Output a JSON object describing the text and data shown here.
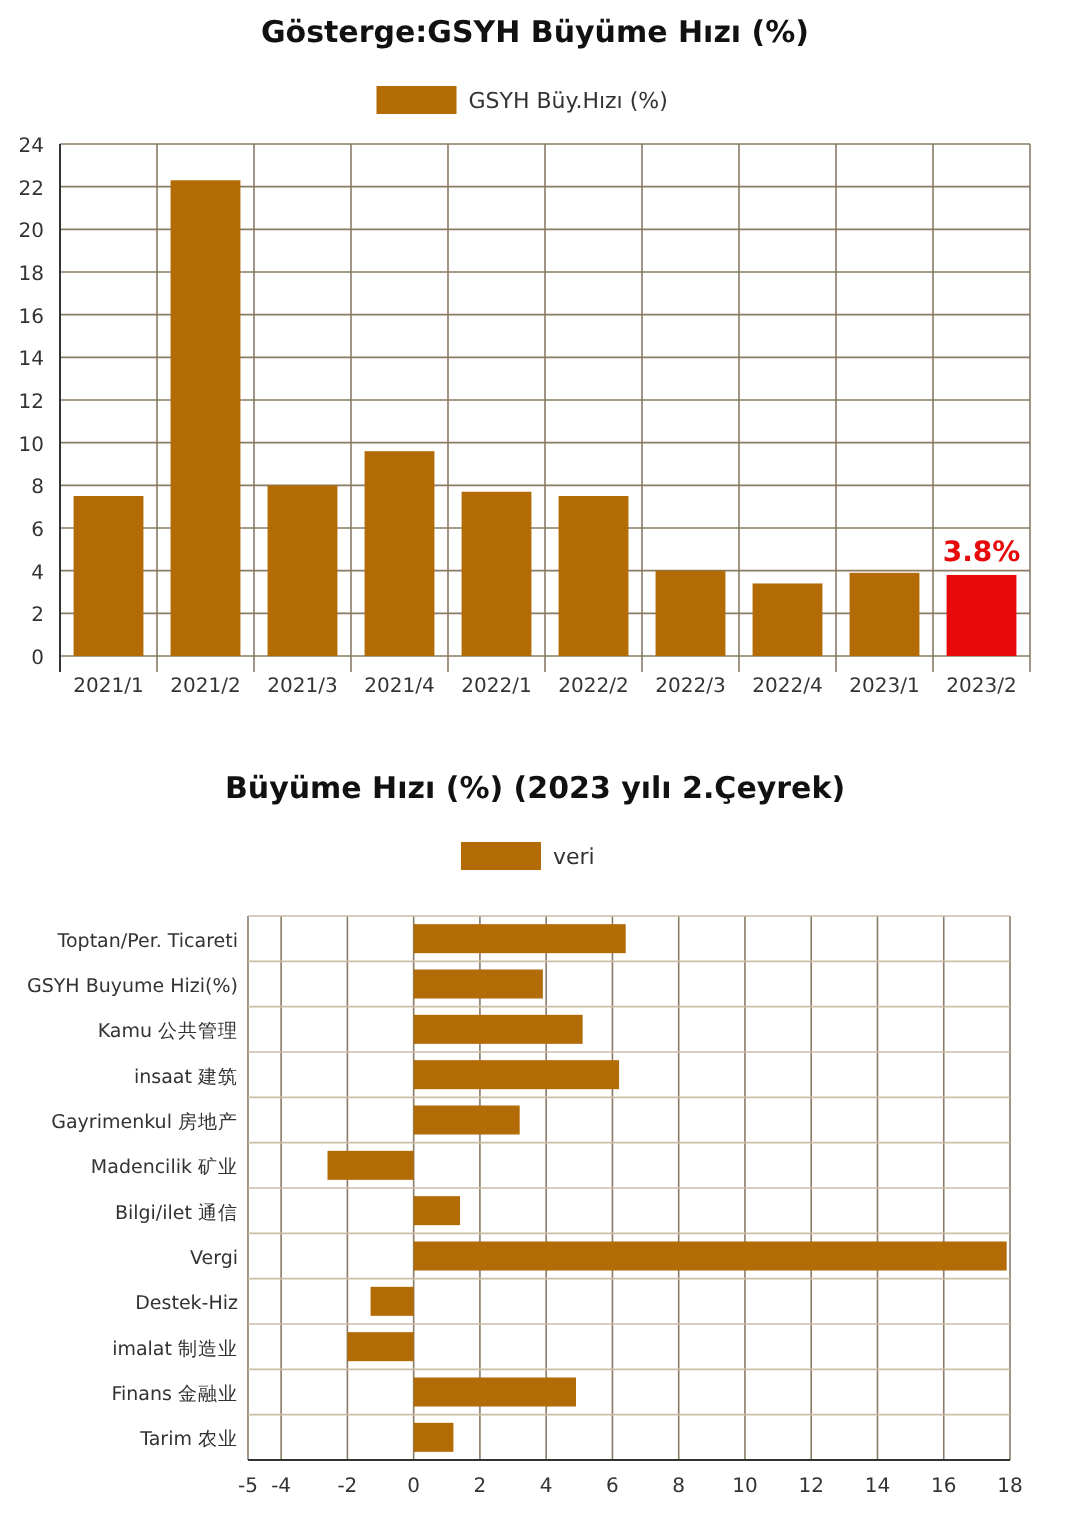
{
  "chart_data": [
    {
      "type": "bar",
      "title": "Gösterge:GSYH Büyüme Hızı (%)",
      "categories": [
        "2021/1",
        "2021/2",
        "2021/3",
        "2021/4",
        "2022/1",
        "2022/2",
        "2022/3",
        "2022/4",
        "2023/1",
        "2023/2"
      ],
      "series": [
        {
          "name": "GSYH Büy.Hızı (%)",
          "color": "#b36b05",
          "colors": [
            "#b36b05",
            "#b36b05",
            "#b36b05",
            "#b36b05",
            "#b36b05",
            "#b36b05",
            "#b36b05",
            "#b36b05",
            "#b36b05",
            "#e60a0a"
          ],
          "values": [
            7.5,
            22.3,
            8.0,
            9.6,
            7.7,
            7.5,
            4.0,
            3.4,
            3.9,
            3.8
          ],
          "value_labels": [
            null,
            null,
            null,
            null,
            null,
            null,
            null,
            null,
            null,
            "3.8%"
          ]
        }
      ],
      "ylim": [
        0,
        24
      ],
      "yticks": [
        0,
        2,
        4,
        6,
        8,
        10,
        12,
        14,
        16,
        18,
        20,
        22,
        24
      ],
      "grid": true,
      "legend": "top"
    },
    {
      "type": "bar",
      "orientation": "horizontal",
      "title": "Büyüme Hızı (%) (2023 yılı 2.Çeyrek)",
      "categories": [
        "Toptan/Per. Ticareti",
        "GSYH Buyume Hizi(%)",
        "Kamu 公共管理",
        "insaat 建筑",
        "Gayrimenkul 房地产",
        "Madencilik 矿业",
        "Bilgi/ilet 通信",
        "Vergi",
        "Destek-Hiz",
        "imalat 制造业",
        "Finans 金融业",
        "Tarim 农业"
      ],
      "series": [
        {
          "name": "veri",
          "color": "#b36b05",
          "values": [
            6.4,
            3.9,
            5.1,
            6.2,
            3.2,
            -2.6,
            1.4,
            17.9,
            -1.3,
            -2.0,
            4.9,
            1.2
          ]
        }
      ],
      "xlim": [
        -5,
        18
      ],
      "xticks": [
        -5,
        -4,
        -2,
        0,
        2,
        4,
        6,
        8,
        10,
        12,
        14,
        16,
        18
      ],
      "grid": true,
      "legend": "top"
    }
  ]
}
